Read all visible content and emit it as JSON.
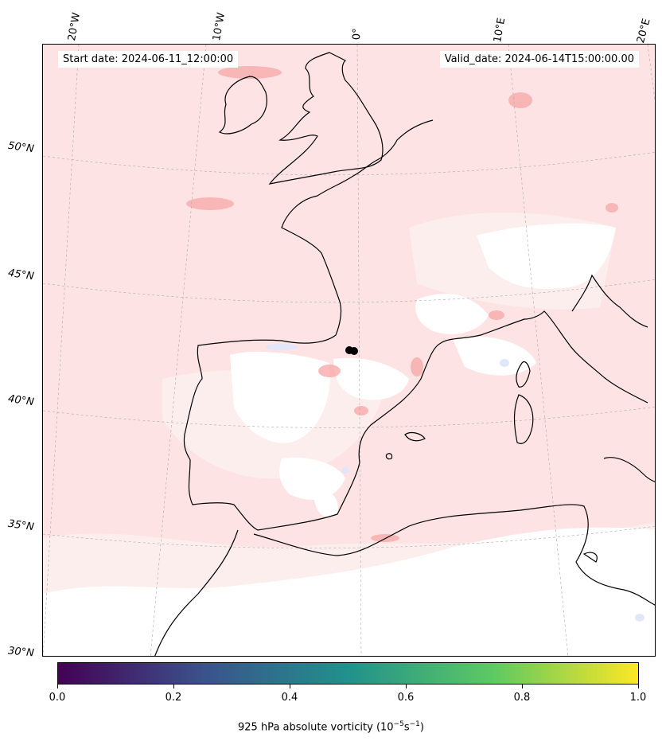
{
  "header": {
    "start_date": "Start date: 2024-06-11_12:00:00",
    "valid_date": "Valid_date: 2024-06-14T15:00:00.00"
  },
  "longitude_labels": [
    "20°W",
    "10°W",
    "0°",
    "10°E",
    "20°E"
  ],
  "latitude_labels": [
    "50°N",
    "45°N",
    "40°N",
    "35°N",
    "30°N"
  ],
  "colorbar": {
    "ticks": [
      "0.0",
      "0.2",
      "0.4",
      "0.6",
      "0.8",
      "1.0"
    ],
    "label_prefix": "925 hPa absolute vorticity (10",
    "label_exp1": "−5",
    "label_mid": "s",
    "label_exp2": "−1",
    "label_suffix": ")",
    "colormap": "viridis",
    "colors": [
      "#440154",
      "#3b528b",
      "#21918c",
      "#5ec962",
      "#fde725"
    ]
  },
  "field": {
    "positive_color": "#fbe2e2",
    "strong_positive_color": "#f59a9a",
    "negative_color": "#e6eaf9",
    "coastline_color": "#000000",
    "gridline_color": "#aaaaaa"
  }
}
